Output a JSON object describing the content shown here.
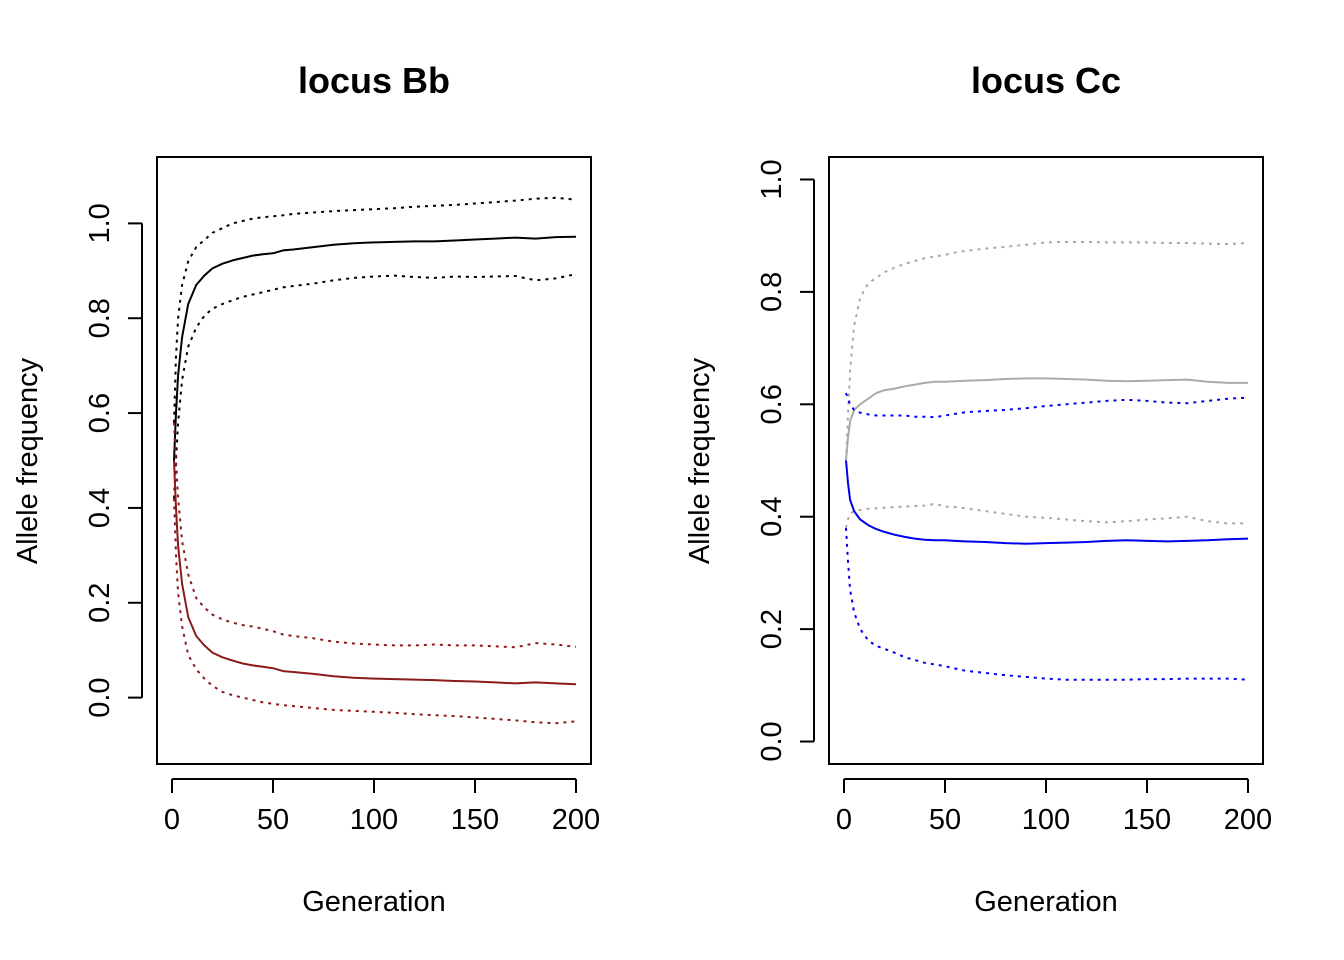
{
  "chart_data": [
    {
      "type": "line",
      "title": "locus Bb",
      "xlabel": "Generation",
      "ylabel": "Allele frequency",
      "xlim": [
        0,
        200
      ],
      "ylim": [
        -0.14,
        1.14
      ],
      "x_ticks": [
        0,
        50,
        100,
        150,
        200
      ],
      "x_tick_labels": [
        "0",
        "50",
        "100",
        "150",
        "200"
      ],
      "y_ticks": [
        0.0,
        0.2,
        0.4,
        0.6,
        0.8,
        1.0
      ],
      "y_tick_labels": [
        "0.0",
        "0.2",
        "0.4",
        "0.6",
        "0.8",
        "1.0"
      ],
      "grid": false,
      "legend": "none",
      "x": [
        1,
        2,
        3,
        5,
        8,
        12,
        16,
        20,
        25,
        30,
        35,
        40,
        45,
        50,
        55,
        60,
        70,
        80,
        90,
        100,
        110,
        120,
        130,
        140,
        150,
        160,
        170,
        180,
        190,
        200
      ],
      "series": [
        {
          "color": "#000000",
          "dash": "solid",
          "values": [
            0.5,
            0.6,
            0.68,
            0.76,
            0.83,
            0.87,
            0.89,
            0.905,
            0.915,
            0.922,
            0.927,
            0.932,
            0.935,
            0.937,
            0.943,
            0.945,
            0.95,
            0.955,
            0.958,
            0.96,
            0.961,
            0.962,
            0.962,
            0.964,
            0.966,
            0.968,
            0.97,
            0.968,
            0.971,
            0.972
          ]
        },
        {
          "color": "#000000",
          "dash": "dotted",
          "values": [
            0.58,
            0.72,
            0.8,
            0.87,
            0.92,
            0.95,
            0.965,
            0.98,
            0.99,
            1.0,
            1.005,
            1.01,
            1.013,
            1.015,
            1.017,
            1.02,
            1.023,
            1.026,
            1.028,
            1.03,
            1.032,
            1.035,
            1.037,
            1.039,
            1.042,
            1.045,
            1.048,
            1.052,
            1.054,
            1.05
          ]
        },
        {
          "color": "#000000",
          "dash": "dotted",
          "values": [
            0.42,
            0.5,
            0.58,
            0.67,
            0.74,
            0.78,
            0.805,
            0.82,
            0.83,
            0.838,
            0.845,
            0.85,
            0.855,
            0.86,
            0.865,
            0.868,
            0.873,
            0.88,
            0.885,
            0.888,
            0.89,
            0.887,
            0.885,
            0.888,
            0.887,
            0.888,
            0.889,
            0.88,
            0.884,
            0.893
          ]
        },
        {
          "color": "#8b1a1a",
          "dash": "solid",
          "values": [
            0.5,
            0.4,
            0.32,
            0.24,
            0.17,
            0.13,
            0.11,
            0.095,
            0.085,
            0.078,
            0.072,
            0.068,
            0.065,
            0.062,
            0.056,
            0.054,
            0.05,
            0.045,
            0.042,
            0.04,
            0.039,
            0.038,
            0.037,
            0.035,
            0.034,
            0.032,
            0.03,
            0.032,
            0.03,
            0.028
          ]
        },
        {
          "color": "#8b1a1a",
          "dash": "dotted",
          "values": [
            0.58,
            0.5,
            0.42,
            0.33,
            0.26,
            0.21,
            0.19,
            0.175,
            0.165,
            0.158,
            0.153,
            0.15,
            0.145,
            0.14,
            0.133,
            0.13,
            0.125,
            0.118,
            0.114,
            0.112,
            0.11,
            0.11,
            0.112,
            0.11,
            0.11,
            0.108,
            0.106,
            0.115,
            0.112,
            0.107
          ]
        },
        {
          "color": "#8b1a1a",
          "dash": "dotted",
          "values": [
            0.42,
            0.3,
            0.22,
            0.15,
            0.09,
            0.06,
            0.04,
            0.025,
            0.012,
            0.005,
            0.0,
            -0.005,
            -0.01,
            -0.013,
            -0.016,
            -0.018,
            -0.022,
            -0.026,
            -0.028,
            -0.03,
            -0.032,
            -0.035,
            -0.037,
            -0.039,
            -0.042,
            -0.045,
            -0.048,
            -0.052,
            -0.054,
            -0.05
          ]
        }
      ]
    },
    {
      "type": "line",
      "title": "locus Cc",
      "xlabel": "Generation",
      "ylabel": "Allele frequency",
      "xlim": [
        0,
        200
      ],
      "ylim": [
        -0.04,
        1.04
      ],
      "x_ticks": [
        0,
        50,
        100,
        150,
        200
      ],
      "x_tick_labels": [
        "0",
        "50",
        "100",
        "150",
        "200"
      ],
      "y_ticks": [
        0.0,
        0.2,
        0.4,
        0.6,
        0.8,
        1.0
      ],
      "y_tick_labels": [
        "0.0",
        "0.2",
        "0.4",
        "0.6",
        "0.8",
        "1.0"
      ],
      "grid": false,
      "legend": "none",
      "x": [
        1,
        2,
        3,
        5,
        8,
        12,
        16,
        20,
        25,
        30,
        35,
        40,
        45,
        50,
        55,
        60,
        70,
        80,
        90,
        100,
        110,
        120,
        130,
        140,
        150,
        160,
        170,
        180,
        190,
        200
      ],
      "series": [
        {
          "color": "#aaaaaa",
          "dash": "solid",
          "values": [
            0.5,
            0.54,
            0.57,
            0.59,
            0.6,
            0.61,
            0.62,
            0.625,
            0.628,
            0.632,
            0.635,
            0.638,
            0.64,
            0.64,
            0.641,
            0.642,
            0.643,
            0.645,
            0.646,
            0.646,
            0.645,
            0.644,
            0.642,
            0.641,
            0.642,
            0.643,
            0.644,
            0.64,
            0.638,
            0.638
          ]
        },
        {
          "color": "#aaaaaa",
          "dash": "dotted",
          "values": [
            0.5,
            0.58,
            0.66,
            0.74,
            0.79,
            0.815,
            0.825,
            0.835,
            0.843,
            0.85,
            0.855,
            0.86,
            0.863,
            0.866,
            0.87,
            0.873,
            0.877,
            0.88,
            0.884,
            0.888,
            0.889,
            0.889,
            0.888,
            0.888,
            0.888,
            0.887,
            0.887,
            0.886,
            0.885,
            0.887
          ]
        },
        {
          "color": "#aaaaaa",
          "dash": "dotted",
          "values": [
            0.38,
            0.395,
            0.405,
            0.41,
            0.412,
            0.414,
            0.415,
            0.416,
            0.417,
            0.418,
            0.419,
            0.42,
            0.423,
            0.418,
            0.417,
            0.415,
            0.41,
            0.405,
            0.4,
            0.398,
            0.395,
            0.392,
            0.39,
            0.392,
            0.395,
            0.397,
            0.4,
            0.392,
            0.388,
            0.388
          ]
        },
        {
          "color": "#0000ee",
          "dash": "solid",
          "values": [
            0.5,
            0.46,
            0.43,
            0.41,
            0.395,
            0.385,
            0.378,
            0.373,
            0.368,
            0.364,
            0.361,
            0.359,
            0.358,
            0.358,
            0.357,
            0.356,
            0.355,
            0.353,
            0.352,
            0.353,
            0.354,
            0.355,
            0.357,
            0.358,
            0.357,
            0.356,
            0.357,
            0.358,
            0.36,
            0.361
          ]
        },
        {
          "color": "#0000ee",
          "dash": "dotted",
          "values": [
            0.62,
            0.61,
            0.6,
            0.59,
            0.585,
            0.582,
            0.58,
            0.58,
            0.58,
            0.58,
            0.578,
            0.578,
            0.577,
            0.58,
            0.583,
            0.586,
            0.588,
            0.59,
            0.593,
            0.597,
            0.6,
            0.603,
            0.606,
            0.608,
            0.606,
            0.603,
            0.602,
            0.606,
            0.61,
            0.612
          ]
        },
        {
          "color": "#0000ee",
          "dash": "dotted",
          "values": [
            0.38,
            0.32,
            0.27,
            0.23,
            0.2,
            0.18,
            0.17,
            0.165,
            0.158,
            0.15,
            0.145,
            0.14,
            0.137,
            0.134,
            0.13,
            0.126,
            0.122,
            0.118,
            0.115,
            0.112,
            0.11,
            0.11,
            0.11,
            0.11,
            0.111,
            0.111,
            0.112,
            0.112,
            0.112,
            0.11
          ]
        }
      ]
    }
  ]
}
